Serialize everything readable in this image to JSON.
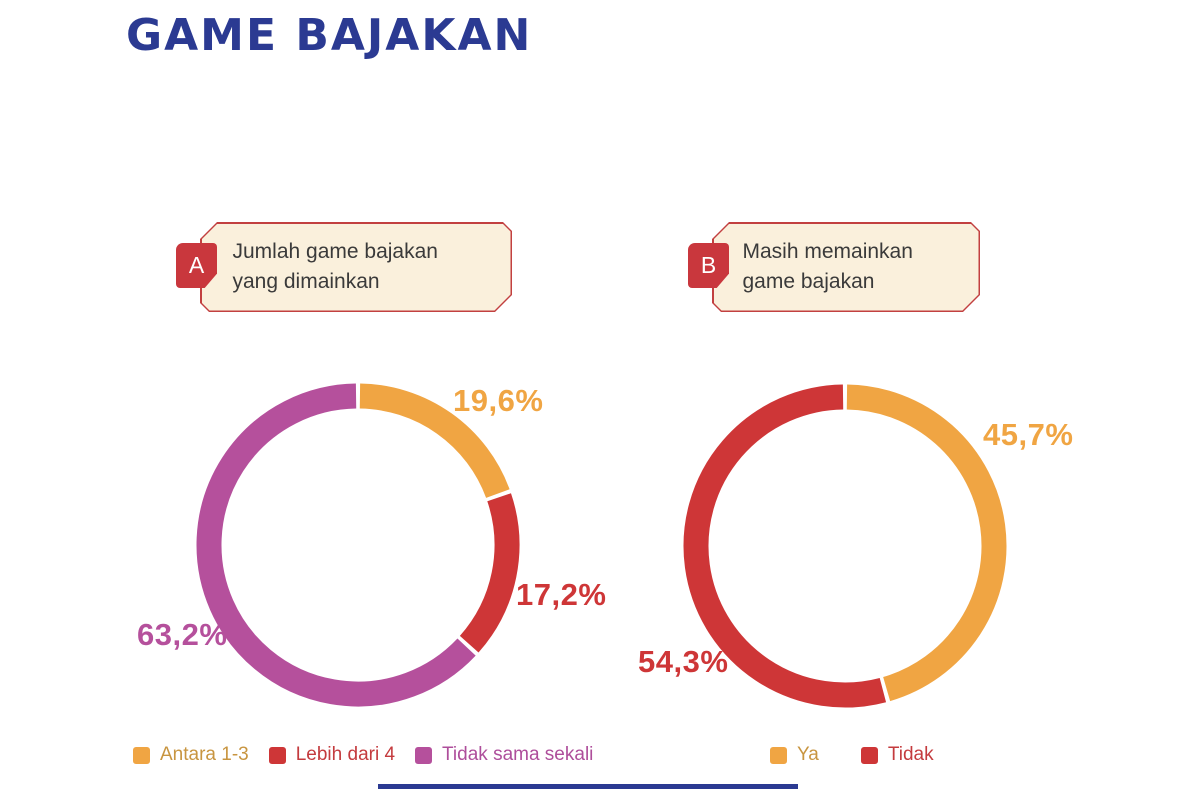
{
  "page": {
    "title": "GAME BAJAKAN",
    "colors": {
      "title_blue": "#2B3A92",
      "card_fill": "#FAF0DC",
      "card_border": "#C24040",
      "badge_red": "#C9373D",
      "text_dark": "#3A3A3A"
    }
  },
  "cards": [
    {
      "badge": "A",
      "line1": "Jumlah game bajakan",
      "line2": "yang dimainkan"
    },
    {
      "badge": "B",
      "line1": "Masih memainkan",
      "line2": "game bajakan"
    }
  ],
  "chart_data": [
    {
      "type": "pie",
      "donut": true,
      "title": "Jumlah game bajakan yang dimainkan",
      "labels": [
        "Antara 1-3",
        "Lebih dari 4",
        "Tidak sama sekali"
      ],
      "values": [
        19.6,
        17.2,
        63.2
      ],
      "value_labels": [
        "19,6%",
        "17,2%",
        "63,2%"
      ],
      "colors": [
        "#F0A543",
        "#CE3637",
        "#B5509C"
      ],
      "legend_text_colors": [
        "#C89540",
        "#C43B3E",
        "#AE4E9B"
      ],
      "start_angle_deg": 0,
      "direction": "clockwise",
      "legend_position": "bottom"
    },
    {
      "type": "pie",
      "donut": true,
      "title": "Masih memainkan game bajakan",
      "labels": [
        "Ya",
        "Tidak"
      ],
      "values": [
        45.7,
        54.3
      ],
      "value_labels": [
        "45,7%",
        "54,3%"
      ],
      "colors": [
        "#F0A543",
        "#CE3637"
      ],
      "legend_text_colors": [
        "#C89540",
        "#C43B3E"
      ],
      "start_angle_deg": 0,
      "direction": "clockwise",
      "legend_position": "bottom"
    }
  ]
}
